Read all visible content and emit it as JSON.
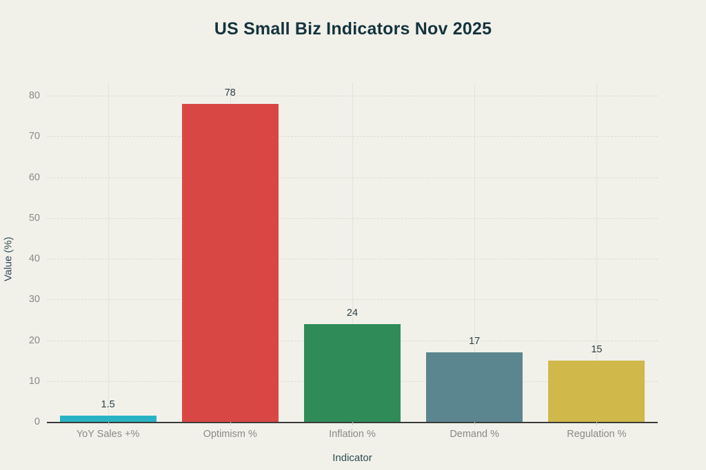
{
  "chart_data": {
    "type": "bar",
    "title": "US Small Biz Indicators Nov 2025",
    "xlabel": "Indicator",
    "ylabel": "Value (%)",
    "categories": [
      "YoY Sales +%",
      "Optimism %",
      "Inflation %",
      "Demand %",
      "Regulation %"
    ],
    "values": [
      1.5,
      78,
      24,
      17,
      15
    ],
    "value_labels": [
      "1.5",
      "78",
      "24",
      "17",
      "15"
    ],
    "bar_colors": [
      "#29b3c4",
      "#d94744",
      "#2f8c58",
      "#5b868f",
      "#d1b84a"
    ],
    "ylim": [
      0,
      80
    ],
    "yticks": [
      0,
      10,
      20,
      30,
      40,
      50,
      60,
      70,
      80
    ],
    "grid": true,
    "legend": false
  },
  "colors": {
    "background": "#f1f1ea",
    "title_text": "#15333d",
    "axis_title_text": "#2e4a52",
    "tick_text": "#8b8b86",
    "axis_line": "#3a3a38",
    "hgridline": "#dddcd2",
    "vgridline": "#e4e3da",
    "tick_mark": "#c9c8c0",
    "bar_label_text": "#2d3f44"
  }
}
